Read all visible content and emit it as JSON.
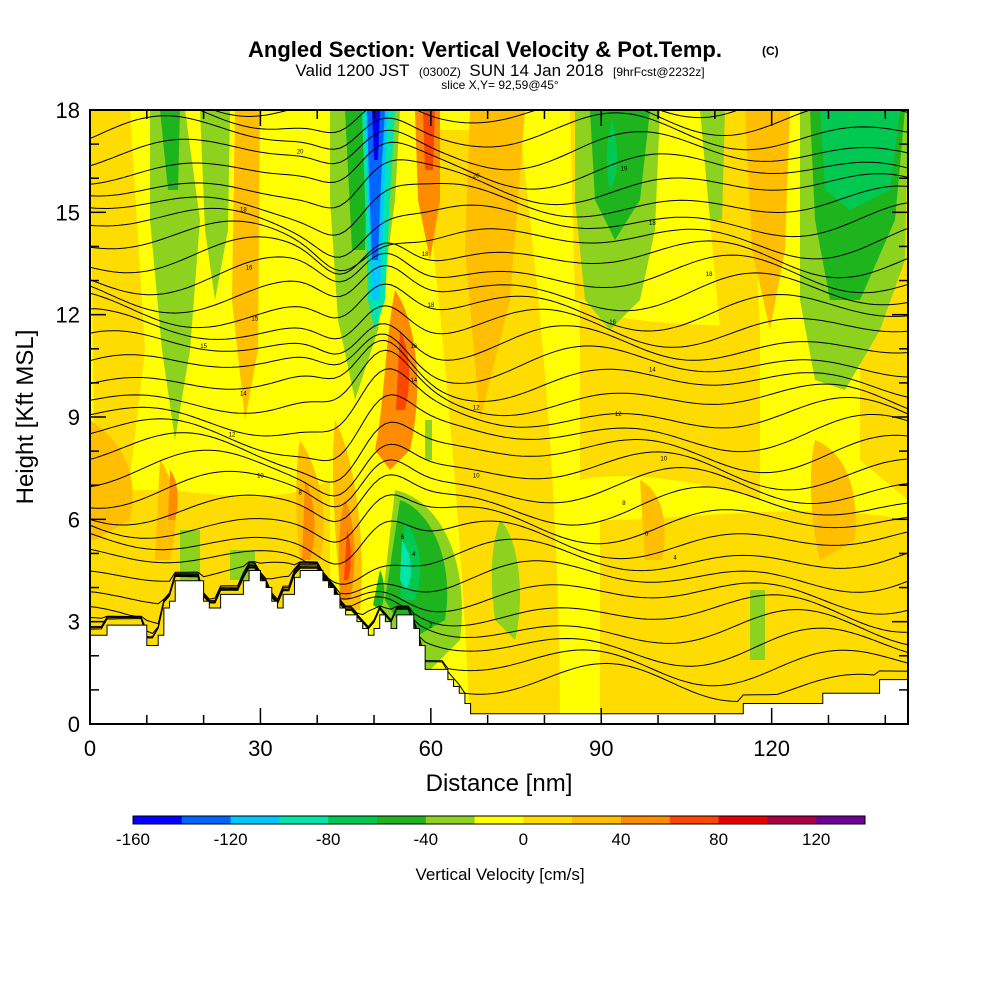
{
  "chart_data": {
    "type": "heatmap",
    "title": "Angled Section: Vertical Velocity & Pot.Temp.",
    "title_badge": "(C)",
    "subtitle_parts": {
      "valid": "Valid 1200 JST",
      "utc": "(0300Z)",
      "date": "SUN 14 Jan 2018",
      "forecast": "[9hrFcst@2232z]"
    },
    "slice_text": "slice X,Y= 92,59@45°",
    "xlabel": "Distance [nm]",
    "ylabel": "Height [Kft MSL]",
    "xlim": [
      0,
      144
    ],
    "ylim": [
      0,
      18
    ],
    "xticks": [
      0,
      30,
      60,
      90,
      120
    ],
    "xticks_minor": [
      10,
      20,
      40,
      50,
      70,
      80,
      100,
      110,
      130,
      140
    ],
    "yticks": [
      0,
      3,
      6,
      9,
      12,
      15,
      18
    ],
    "yticks_minor": [
      1,
      2,
      4,
      5,
      7,
      8,
      10,
      11,
      13,
      14,
      16,
      17
    ],
    "background_color": "#ffff00",
    "colorbar": {
      "label": "Vertical Velocity [cm/s]",
      "ticks": [
        -160,
        -120,
        -80,
        -40,
        0,
        40,
        80,
        120
      ],
      "bins": [
        {
          "from": -160,
          "to": -140,
          "color": "#0000ff"
        },
        {
          "from": -140,
          "to": -120,
          "color": "#0064ff"
        },
        {
          "from": -120,
          "to": -100,
          "color": "#00c8ff"
        },
        {
          "from": -100,
          "to": -80,
          "color": "#00e6aa"
        },
        {
          "from": -80,
          "to": -60,
          "color": "#00c850"
        },
        {
          "from": -60,
          "to": -40,
          "color": "#1eb41e"
        },
        {
          "from": -40,
          "to": -20,
          "color": "#8cd21e"
        },
        {
          "from": -20,
          "to": 0,
          "color": "#ffff00"
        },
        {
          "from": 0,
          "to": 20,
          "color": "#ffdc00"
        },
        {
          "from": 20,
          "to": 40,
          "color": "#ffbe00"
        },
        {
          "from": 40,
          "to": 60,
          "color": "#ff8c00"
        },
        {
          "from": 60,
          "to": 80,
          "color": "#ff4600"
        },
        {
          "from": 80,
          "to": 100,
          "color": "#e60000"
        },
        {
          "from": 100,
          "to": 120,
          "color": "#aa0046"
        },
        {
          "from": 120,
          "to": 140,
          "color": "#6e0096"
        }
      ]
    },
    "terrain_profile": [
      [
        0,
        2.6
      ],
      [
        3,
        2.9
      ],
      [
        9,
        2.9
      ],
      [
        10,
        2.3
      ],
      [
        12,
        2.6
      ],
      [
        13,
        3.4
      ],
      [
        14,
        3.6
      ],
      [
        15,
        4.2
      ],
      [
        18,
        4.2
      ],
      [
        20,
        3.6
      ],
      [
        21,
        3.4
      ],
      [
        23,
        3.8
      ],
      [
        25,
        3.8
      ],
      [
        27,
        4.2
      ],
      [
        28,
        4.5
      ],
      [
        30,
        4.2
      ],
      [
        31,
        4.0
      ],
      [
        32,
        3.6
      ],
      [
        33,
        3.4
      ],
      [
        34,
        3.8
      ],
      [
        36,
        4.3
      ],
      [
        37,
        4.5
      ],
      [
        40,
        4.5
      ],
      [
        41,
        4.2
      ],
      [
        42,
        4.0
      ],
      [
        43,
        3.8
      ],
      [
        44,
        3.4
      ],
      [
        45,
        3.2
      ],
      [
        47,
        3.0
      ],
      [
        48,
        2.8
      ],
      [
        49,
        2.6
      ],
      [
        50,
        2.8
      ],
      [
        51,
        3.2
      ],
      [
        52,
        3.0
      ],
      [
        53,
        2.8
      ],
      [
        54,
        3.2
      ],
      [
        56,
        3.2
      ],
      [
        57,
        2.8
      ],
      [
        58,
        2.3
      ],
      [
        59,
        1.6
      ],
      [
        62,
        1.6
      ],
      [
        63,
        1.3
      ],
      [
        64,
        1.1
      ],
      [
        65,
        0.9
      ],
      [
        66,
        0.6
      ],
      [
        67,
        0.3
      ],
      [
        114,
        0.3
      ],
      [
        115,
        0.6
      ],
      [
        128,
        0.6
      ],
      [
        129,
        0.9
      ],
      [
        138,
        0.9
      ],
      [
        139,
        1.3
      ],
      [
        144,
        1.3
      ]
    ],
    "theta_isotherm_labels": [
      {
        "x": 37,
        "y": 16.8,
        "text": "20"
      },
      {
        "x": 27,
        "y": 15.1,
        "text": "18"
      },
      {
        "x": 28,
        "y": 13.4,
        "text": "16"
      },
      {
        "x": 29,
        "y": 11.9,
        "text": "15"
      },
      {
        "x": 20,
        "y": 11.1,
        "text": "15"
      },
      {
        "x": 27,
        "y": 9.7,
        "text": "14"
      },
      {
        "x": 25,
        "y": 8.5,
        "text": "12"
      },
      {
        "x": 30,
        "y": 7.3,
        "text": "10"
      },
      {
        "x": 37,
        "y": 6.8,
        "text": "8"
      },
      {
        "x": 55,
        "y": 5.5,
        "text": "6"
      },
      {
        "x": 57,
        "y": 5.0,
        "text": "4"
      },
      {
        "x": 60,
        "y": 2.9,
        "text": "2"
      },
      {
        "x": 68,
        "y": 16.1,
        "text": "20"
      },
      {
        "x": 59,
        "y": 13.8,
        "text": "18"
      },
      {
        "x": 60,
        "y": 12.3,
        "text": "18"
      },
      {
        "x": 57,
        "y": 11.1,
        "text": "16"
      },
      {
        "x": 57,
        "y": 10.1,
        "text": "14"
      },
      {
        "x": 68,
        "y": 9.3,
        "text": "12"
      },
      {
        "x": 68,
        "y": 7.3,
        "text": "10"
      },
      {
        "x": 94,
        "y": 16.3,
        "text": "19"
      },
      {
        "x": 99,
        "y": 14.7,
        "text": "18"
      },
      {
        "x": 109,
        "y": 13.2,
        "text": "18"
      },
      {
        "x": 92,
        "y": 11.8,
        "text": "16"
      },
      {
        "x": 99,
        "y": 10.4,
        "text": "14"
      },
      {
        "x": 93,
        "y": 9.1,
        "text": "12"
      },
      {
        "x": 101,
        "y": 7.8,
        "text": "10"
      },
      {
        "x": 94,
        "y": 6.5,
        "text": "8"
      },
      {
        "x": 98,
        "y": 5.6,
        "text": "6"
      },
      {
        "x": 103,
        "y": 4.9,
        "text": "4"
      }
    ],
    "grid": false
  }
}
